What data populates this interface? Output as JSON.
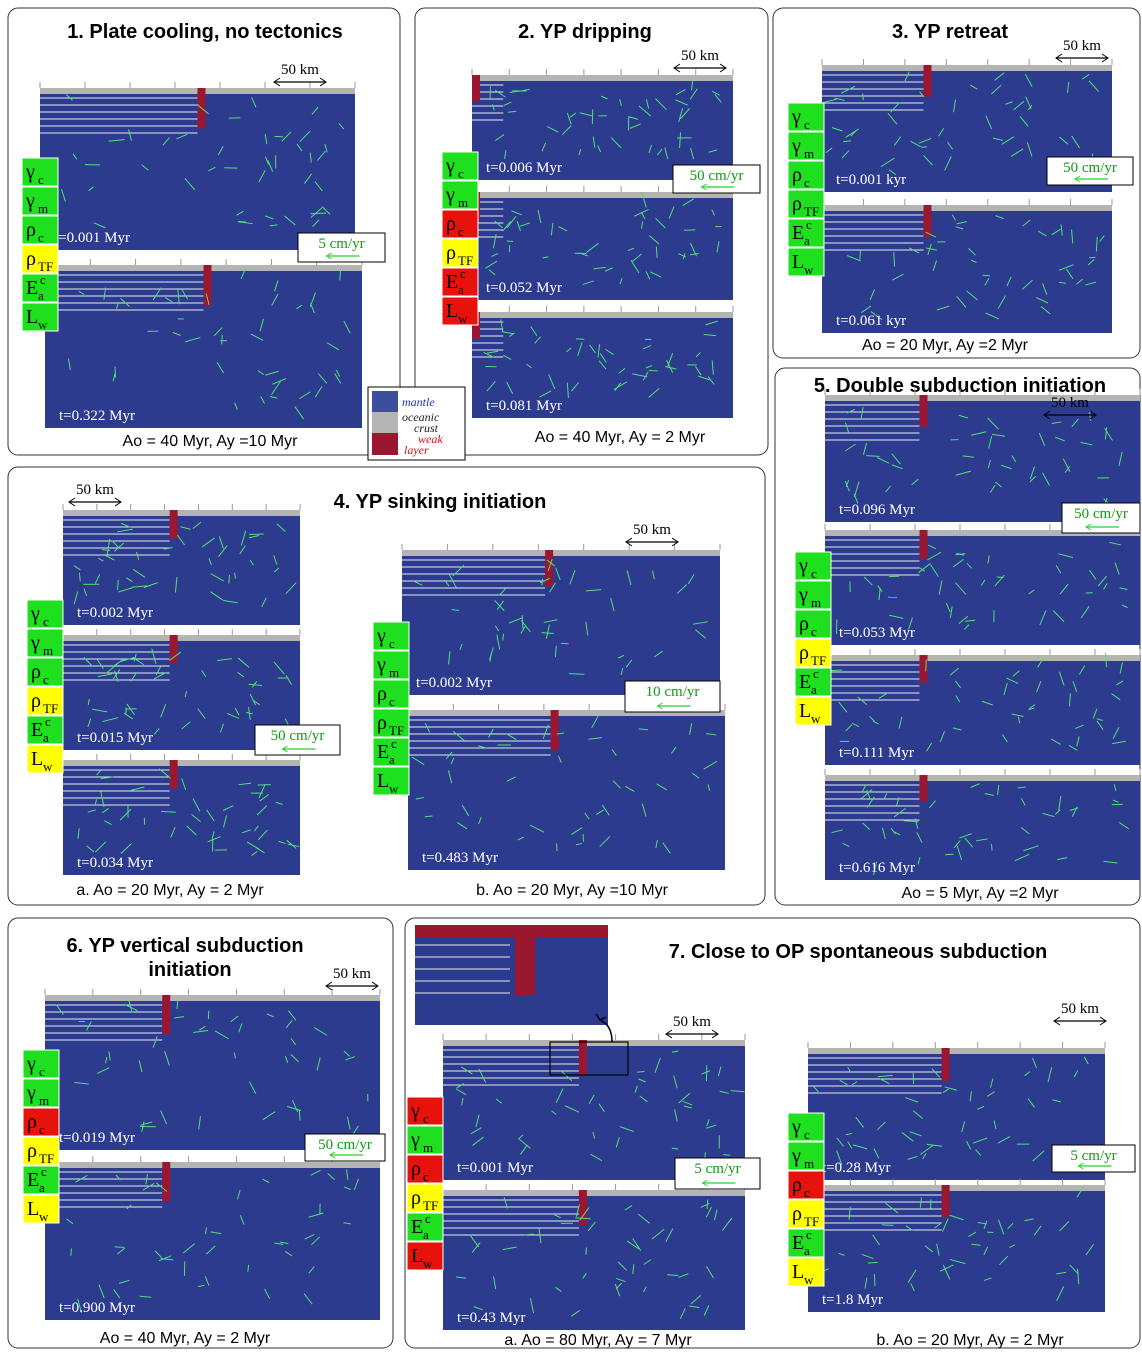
{
  "legend": {
    "mantle": "mantle",
    "crust": [
      "oceanic",
      "crust"
    ],
    "weak": [
      "weak",
      "layer"
    ]
  },
  "panels": [
    {
      "title": [
        "1. Plate cooling, no tectonics"
      ],
      "scales": [
        "50 km"
      ],
      "velocities": [
        "5 cm/yr"
      ],
      "param_sets": [
        [
          {
            "base": "γ",
            "sub": "c",
            "color": "#1fe01f"
          },
          {
            "base": "γ",
            "sub": "m",
            "color": "#1fe01f"
          },
          {
            "base": "ρ",
            "sub": "c",
            "color": "#1fe01f"
          },
          {
            "base": "ρ",
            "sub": "TF",
            "color": "#ffff00"
          },
          {
            "base": "E",
            "sup": "c",
            "sub": "a",
            "color": "#1fe01f"
          },
          {
            "base": "L",
            "sub": "w",
            "color": "#1fe01f"
          }
        ]
      ],
      "snapshots": [
        "t=0.001 Myr",
        "t=0.322 Myr"
      ],
      "footers": [
        "Ao = 40 Myr,  Ay =10 Myr"
      ]
    },
    {
      "title": [
        "2. YP dripping"
      ],
      "scales": [
        "50 km"
      ],
      "velocities": [
        "50 cm/yr"
      ],
      "param_sets": [
        [
          {
            "base": "γ",
            "sub": "c",
            "color": "#1fe01f"
          },
          {
            "base": "γ",
            "sub": "m",
            "color": "#1fe01f"
          },
          {
            "base": "ρ",
            "sub": "c",
            "color": "#e8120c"
          },
          {
            "base": "ρ",
            "sub": "TF",
            "color": "#ffff00"
          },
          {
            "base": "E",
            "sup": "c",
            "sub": "a",
            "color": "#e8120c"
          },
          {
            "base": "L",
            "sub": "w",
            "color": "#e8120c"
          }
        ]
      ],
      "snapshots": [
        "t=0.006 Myr",
        "t=0.052 Myr",
        "t=0.081 Myr"
      ],
      "footers": [
        "Ao = 40 Myr, Ay = 2 Myr"
      ]
    },
    {
      "title": [
        "3. YP retreat"
      ],
      "scales": [
        "50 km"
      ],
      "velocities": [
        "50 cm/yr"
      ],
      "param_sets": [
        [
          {
            "base": "γ",
            "sub": "c",
            "color": "#1fe01f"
          },
          {
            "base": "γ",
            "sub": "m",
            "color": "#1fe01f"
          },
          {
            "base": "ρ",
            "sub": "c",
            "color": "#1fe01f"
          },
          {
            "base": "ρ",
            "sub": "TF",
            "color": "#1fe01f"
          },
          {
            "base": "E",
            "sup": "c",
            "sub": "a",
            "color": "#1fe01f"
          },
          {
            "base": "L",
            "sub": "w",
            "color": "#1fe01f"
          }
        ]
      ],
      "snapshots": [
        "t=0.001 kyr",
        "t=0.061 kyr"
      ],
      "footers": [
        "Ao = 20 Myr,    Ay =2 Myr"
      ]
    },
    {
      "title": [
        "4. YP sinking initiation"
      ],
      "scales": [
        "50 km",
        "50 km"
      ],
      "velocities": [
        "50 cm/yr",
        "10 cm/yr"
      ],
      "param_sets": [
        [
          {
            "base": "γ",
            "sub": "c",
            "color": "#1fe01f"
          },
          {
            "base": "γ",
            "sub": "m",
            "color": "#1fe01f"
          },
          {
            "base": "ρ",
            "sub": "c",
            "color": "#1fe01f"
          },
          {
            "base": "ρ",
            "sub": "TF",
            "color": "#ffff00"
          },
          {
            "base": "E",
            "sup": "c",
            "sub": "a",
            "color": "#1fe01f"
          },
          {
            "base": "L",
            "sub": "w",
            "color": "#ffff00"
          }
        ],
        [
          {
            "base": "γ",
            "sub": "c",
            "color": "#1fe01f"
          },
          {
            "base": "γ",
            "sub": "m",
            "color": "#1fe01f"
          },
          {
            "base": "ρ",
            "sub": "c",
            "color": "#1fe01f"
          },
          {
            "base": "ρ",
            "sub": "TF",
            "color": "#1fe01f"
          },
          {
            "base": "E",
            "sup": "c",
            "sub": "a",
            "color": "#1fe01f"
          },
          {
            "base": "L",
            "sub": "w",
            "color": "#1fe01f"
          }
        ]
      ],
      "snapshots": [
        "t=0.002 Myr",
        "t=0.015 Myr",
        "t=0.034 Myr",
        "t=0.002 Myr",
        "t=0.483 Myr"
      ],
      "footers": [
        "a. Ao = 20 Myr, Ay = 2 Myr",
        "b. Ao = 20 Myr,  Ay =10 Myr"
      ]
    },
    {
      "title": [
        "5. Double subduction initiation"
      ],
      "scales": [
        "50 km"
      ],
      "velocities": [
        "50 cm/yr"
      ],
      "param_sets": [
        [
          {
            "base": "γ",
            "sub": "c",
            "color": "#1fe01f"
          },
          {
            "base": "γ",
            "sub": "m",
            "color": "#1fe01f"
          },
          {
            "base": "ρ",
            "sub": "c",
            "color": "#1fe01f"
          },
          {
            "base": "ρ",
            "sub": "TF",
            "color": "#ffff00"
          },
          {
            "base": "E",
            "sup": "c",
            "sub": "a",
            "color": "#1fe01f"
          },
          {
            "base": "L",
            "sub": "w",
            "color": "#ffff00"
          }
        ]
      ],
      "snapshots": [
        "t=0.096 Myr",
        "t=0.053 Myr",
        "t=0.111 Myr",
        "t=0.616 Myr"
      ],
      "footers": [
        "Ao = 5 Myr,  Ay =2 Myr"
      ]
    },
    {
      "title": [
        "6. YP vertical subduction",
        "initiation"
      ],
      "scales": [
        "50 km"
      ],
      "velocities": [
        "50 cm/yr"
      ],
      "param_sets": [
        [
          {
            "base": "γ",
            "sub": "c",
            "color": "#1fe01f"
          },
          {
            "base": "γ",
            "sub": "m",
            "color": "#1fe01f"
          },
          {
            "base": "ρ",
            "sub": "c",
            "color": "#e8120c"
          },
          {
            "base": "ρ",
            "sub": "TF",
            "color": "#ffff00"
          },
          {
            "base": "E",
            "sup": "c",
            "sub": "a",
            "color": "#1fe01f"
          },
          {
            "base": "L",
            "sub": "w",
            "color": "#ffff00"
          }
        ]
      ],
      "snapshots": [
        "t=0.019 Myr",
        "t=0.900 Myr"
      ],
      "footers": [
        "Ao = 40 Myr, Ay = 2 Myr"
      ]
    },
    {
      "title": [
        "7. Close to OP spontaneous subduction"
      ],
      "scales": [
        "50 km",
        "50 km"
      ],
      "velocities": [
        "5 cm/yr",
        "5 cm/yr"
      ],
      "param_sets": [
        [
          {
            "base": "γ",
            "sub": "c",
            "color": "#e8120c"
          },
          {
            "base": "γ",
            "sub": "m",
            "color": "#1fe01f"
          },
          {
            "base": "ρ",
            "sub": "c",
            "color": "#e8120c"
          },
          {
            "base": "ρ",
            "sub": "TF",
            "color": "#ffff00"
          },
          {
            "base": "E",
            "sup": "c",
            "sub": "a",
            "color": "#1fe01f"
          },
          {
            "base": "L",
            "sub": "w",
            "color": "#e8120c"
          }
        ],
        [
          {
            "base": "γ",
            "sub": "c",
            "color": "#1fe01f"
          },
          {
            "base": "γ",
            "sub": "m",
            "color": "#1fe01f"
          },
          {
            "base": "ρ",
            "sub": "c",
            "color": "#e8120c"
          },
          {
            "base": "ρ",
            "sub": "TF",
            "color": "#ffff00"
          },
          {
            "base": "E",
            "sup": "c",
            "sub": "a",
            "color": "#1fe01f"
          },
          {
            "base": "L",
            "sub": "w",
            "color": "#ffff00"
          }
        ]
      ],
      "snapshots": [
        "t=0.001 Myr",
        "t=0.43 Myr",
        "t=0.28 Myr",
        "t=1.8 Myr"
      ],
      "footers": [
        "a. Ao = 80 Myr, Ay = 7 Myr",
        "b. Ao = 20 Myr, Ay = 2 Myr"
      ]
    }
  ]
}
